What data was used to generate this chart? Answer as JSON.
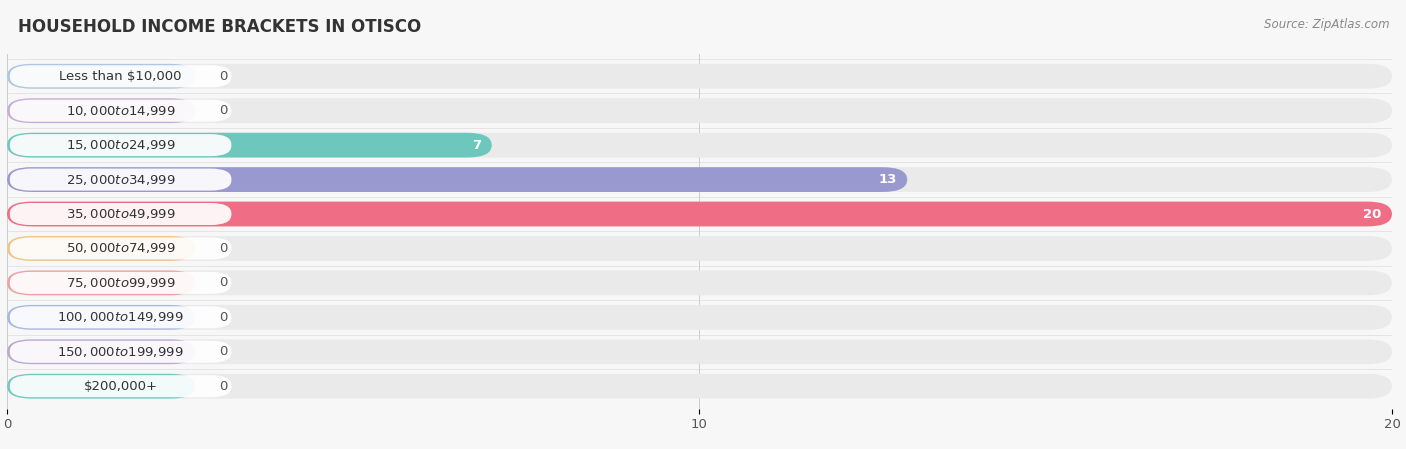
{
  "title": "HOUSEHOLD INCOME BRACKETS IN OTISCO",
  "source": "Source: ZipAtlas.com",
  "categories": [
    "Less than $10,000",
    "$10,000 to $14,999",
    "$15,000 to $24,999",
    "$25,000 to $34,999",
    "$35,000 to $49,999",
    "$50,000 to $74,999",
    "$75,000 to $99,999",
    "$100,000 to $149,999",
    "$150,000 to $199,999",
    "$200,000+"
  ],
  "values": [
    0,
    0,
    7,
    13,
    20,
    0,
    0,
    0,
    0,
    0
  ],
  "bar_colors": [
    "#a8c4e0",
    "#c4a8d8",
    "#5fc4b8",
    "#9090cc",
    "#f0607a",
    "#f0c07a",
    "#f09898",
    "#a0b4e0",
    "#b8a0cc",
    "#68c4c4"
  ],
  "xlim": [
    0,
    20
  ],
  "xticks": [
    0,
    10,
    20
  ],
  "background_color": "#f7f7f7",
  "row_bg_color": "#eeeeee",
  "label_box_color": "#ffffff",
  "title_fontsize": 12,
  "label_fontsize": 9.5,
  "value_fontsize": 9.5,
  "source_fontsize": 8.5
}
